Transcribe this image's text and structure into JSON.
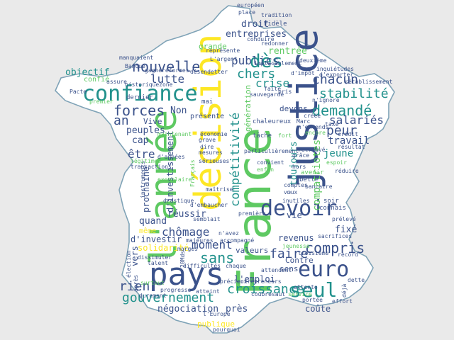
{
  "colors": {
    "page_background": "#eaeaea",
    "map_fill": "#ffffff",
    "map_outline": "#7fa3b7",
    "palette": [
      "#440154",
      "#3b528b",
      "#21918c",
      "#5ec962",
      "#fde725"
    ]
  },
  "words": [
    {
      "text": "France",
      "color": "#5ec962"
    },
    {
      "text": "justice",
      "color": "#3b528b"
    },
    {
      "text": "décision",
      "color": "#fde725"
    },
    {
      "text": "l'année",
      "color": "#5ec962"
    },
    {
      "text": "pays",
      "color": "#3b528b"
    },
    {
      "text": "confiance",
      "color": "#21918c"
    },
    {
      "text": "devoir",
      "color": "#3b528b"
    },
    {
      "text": "euro",
      "color": "#3b528b"
    },
    {
      "text": "seul",
      "color": "#21918c"
    },
    {
      "text": "gouvernement",
      "color": "#21918c"
    },
    {
      "text": "compris",
      "color": "#3b528b"
    },
    {
      "text": "croissance",
      "color": "#21918c"
    },
    {
      "text": "dès",
      "color": "#21918c"
    },
    {
      "text": "demandé",
      "color": "#21918c"
    },
    {
      "text": "nouvelle",
      "color": "#3b528b"
    },
    {
      "text": "forces",
      "color": "#3b528b"
    },
    {
      "text": "publics",
      "color": "#3b528b"
    },
    {
      "text": "chers",
      "color": "#21918c"
    },
    {
      "text": "crise",
      "color": "#21918c"
    },
    {
      "text": "stabilité",
      "color": "#21918c"
    },
    {
      "text": "chacun",
      "color": "#3b528b"
    },
    {
      "text": "peur",
      "color": "#3b528b"
    },
    {
      "text": "salariés",
      "color": "#3b528b"
    },
    {
      "text": "travail",
      "color": "#3b528b"
    },
    {
      "text": "jeune",
      "color": "#21918c"
    },
    {
      "text": "compétitivité",
      "color": "#21918c"
    },
    {
      "text": "compatriotes",
      "color": "#5ec962"
    },
    {
      "text": "toujours",
      "color": "#21918c"
    },
    {
      "text": "chômage",
      "color": "#3b528b"
    },
    {
      "text": "moment",
      "color": "#3b528b"
    },
    {
      "text": "sans",
      "color": "#21918c"
    },
    {
      "text": "faire",
      "color": "#3b528b"
    },
    {
      "text": "rien",
      "color": "#3b528b"
    },
    {
      "text": "entreprises",
      "color": "#3b528b"
    },
    {
      "text": "droit",
      "color": "#3b528b"
    },
    {
      "text": "rentrée",
      "color": "#5ec962"
    },
    {
      "text": "lutte",
      "color": "#3b528b"
    },
    {
      "text": "objectif",
      "color": "#21918c"
    },
    {
      "text": "an",
      "color": "#3b528b"
    },
    {
      "text": "Non",
      "color": "#3b528b"
    },
    {
      "text": "peuples",
      "color": "#3b528b"
    },
    {
      "text": "cap",
      "color": "#3b528b"
    },
    {
      "text": "être",
      "color": "#3b528b"
    },
    {
      "text": "d'investissement",
      "color": "#3b528b"
    },
    {
      "text": "réussir",
      "color": "#3b528b"
    },
    {
      "text": "quand",
      "color": "#3b528b"
    },
    {
      "text": "prochaine",
      "color": "#3b528b"
    },
    {
      "text": "solidarité",
      "color": "#fde725"
    },
    {
      "text": "d'investir",
      "color": "#3b528b"
    },
    {
      "text": "négociation",
      "color": "#3b528b"
    },
    {
      "text": "près",
      "color": "#3b528b"
    },
    {
      "text": "coûte",
      "color": "#3b528b"
    },
    {
      "text": "fixé",
      "color": "#3b528b"
    },
    {
      "text": "revenus",
      "color": "#3b528b"
    },
    {
      "text": "vie",
      "color": "#3b528b"
    },
    {
      "text": "l'emploi",
      "color": "#3b528b"
    },
    {
      "text": "valeurs",
      "color": "#3b528b"
    },
    {
      "text": "grande",
      "color": "#5ec962"
    },
    {
      "text": "génération",
      "color": "#5ec962"
    },
    {
      "text": "devons",
      "color": "#3b528b"
    },
    {
      "text": "publique",
      "color": "#fde725"
    },
    {
      "text": "vers",
      "color": "#3b528b"
    },
    {
      "text": "Vive",
      "color": "#3b528b"
    },
    {
      "text": "présente",
      "color": "#3b528b"
    },
    {
      "text": "même",
      "color": "#fde725"
    },
    {
      "text": "Contre",
      "color": "#3b528b"
    },
    {
      "text": "sens",
      "color": "#3b528b"
    },
    {
      "text": "européen",
      "color": "#3b528b"
    },
    {
      "text": "place",
      "color": "#3b528b"
    },
    {
      "text": "tradition",
      "color": "#3b528b"
    },
    {
      "text": "Fidèle",
      "color": "#3b528b"
    },
    {
      "text": "dernier",
      "color": "#3b528b"
    },
    {
      "text": "chaleureux",
      "color": "#3b528b"
    },
    {
      "text": "tâche",
      "color": "#3b528b"
    },
    {
      "text": "semblait",
      "color": "#3b528b"
    },
    {
      "text": "record",
      "color": "#3b528b"
    },
    {
      "text": "talent",
      "color": "#3b528b"
    },
    {
      "text": "progresse",
      "color": "#3b528b"
    },
    {
      "text": "Pacte",
      "color": "#3b528b"
    },
    {
      "text": "confié",
      "color": "#5ec962"
    },
    {
      "text": "manquaient",
      "color": "#3b528b"
    },
    {
      "text": "crédit",
      "color": "#3b528b"
    },
    {
      "text": "l'Europe",
      "color": "#3b528b"
    },
    {
      "text": "pourquoi",
      "color": "#3b528b"
    },
    {
      "text": "précieux",
      "color": "#3b528b"
    },
    {
      "text": "effort",
      "color": "#3b528b"
    },
    {
      "text": "portée",
      "color": "#3b528b"
    },
    {
      "text": "attendent",
      "color": "#3b528b"
    },
    {
      "text": "difficultés",
      "color": "#3b528b"
    },
    {
      "text": "dissimuler",
      "color": "#3b528b"
    },
    {
      "text": "grave",
      "color": "#3b528b"
    },
    {
      "text": "dire",
      "color": "#3b528b"
    },
    {
      "text": "mai",
      "color": "#3b528b"
    },
    {
      "text": "mesures",
      "color": "#3b528b"
    },
    {
      "text": "sérieuses",
      "color": "#3b528b"
    },
    {
      "text": "transactions",
      "color": "#3b528b"
    },
    {
      "text": "d'années",
      "color": "#3b528b"
    },
    {
      "text": "instruments",
      "color": "#3b528b"
    },
    {
      "text": "drastique",
      "color": "#3b528b"
    },
    {
      "text": "particulièrement",
      "color": "#3b528b"
    },
    {
      "text": "avenir",
      "color": "#5ec962"
    },
    {
      "text": "soir",
      "color": "#3b528b"
    },
    {
      "text": "connais",
      "color": "#3b528b"
    },
    {
      "text": "belle",
      "color": "#3b528b"
    },
    {
      "text": "taxe",
      "color": "#3b528b"
    },
    {
      "text": "réduire",
      "color": "#3b528b"
    },
    {
      "text": "inquiétudes",
      "color": "#3b528b"
    },
    {
      "text": "d'exporter",
      "color": "#3b528b"
    },
    {
      "text": "d'impôt",
      "color": "#3b528b"
    },
    {
      "text": "rétablissement",
      "color": "#3b528b"
    },
    {
      "text": "n'ignore",
      "color": "#3b528b"
    },
    {
      "text": "retrouvé",
      "color": "#3b528b"
    },
    {
      "text": "résultat",
      "color": "#3b528b"
    },
    {
      "text": "conduire",
      "color": "#3b528b"
    },
    {
      "text": "redonner",
      "color": "#3b528b"
    },
    {
      "text": "réformes",
      "color": "#3b528b"
    },
    {
      "text": "sauvegarde",
      "color": "#3b528b"
    },
    {
      "text": "première",
      "color": "#3b528b"
    },
    {
      "text": "maîtrise",
      "color": "#3b528b"
    },
    {
      "text": "marges",
      "color": "#3b528b"
    },
    {
      "text": "accompagné",
      "color": "#3b528b"
    },
    {
      "text": "entrepreneurs",
      "color": "#3b528b"
    },
    {
      "text": "chaque",
      "color": "#3b528b"
    },
    {
      "text": "troisième",
      "color": "#3b528b"
    },
    {
      "text": "sacrifices",
      "color": "#3b528b"
    },
    {
      "text": "comptes",
      "color": "#3b528b"
    },
    {
      "text": "hors",
      "color": "#3b528b"
    },
    {
      "text": "grâce",
      "color": "#3b528b"
    },
    {
      "text": "créée",
      "color": "#3b528b"
    },
    {
      "text": "prélevé",
      "color": "#3b528b"
    },
    {
      "text": "attente",
      "color": "#3b528b"
    },
    {
      "text": "coubresaut",
      "color": "#3b528b"
    },
    {
      "text": "vœux",
      "color": "#3b528b"
    },
    {
      "text": "n'avez",
      "color": "#3b528b"
    },
    {
      "text": "d'embaucher",
      "color": "#3b528b"
    },
    {
      "text": "exemplaire",
      "color": "#5ec962"
    },
    {
      "text": "légitimes",
      "color": "#5ec962"
    },
    {
      "text": "historiquezone",
      "color": "#3b528b"
    },
    {
      "text": "économie",
      "color": "#3b528b"
    },
    {
      "text": "assure",
      "color": "#3b528b"
    },
    {
      "text": "Banque",
      "color": "#3b528b"
    },
    {
      "text": "gagné",
      "color": "#3b528b"
    },
    {
      "text": "désendetter",
      "color": "#3b528b"
    },
    {
      "text": "implacablement",
      "color": "#3b528b"
    },
    {
      "text": "représente",
      "color": "#3b528b"
    },
    {
      "text": "L'argent",
      "color": "#3b528b"
    },
    {
      "text": "n'entends",
      "color": "#3b528b"
    },
    {
      "text": "bancaire",
      "color": "#3b528b"
    },
    {
      "text": "espoir",
      "color": "#5ec962"
    },
    {
      "text": "jeunesse",
      "color": "#5ec962"
    },
    {
      "text": "inutiles",
      "color": "#3b528b"
    },
    {
      "text": "convient",
      "color": "#3b528b"
    },
    {
      "text": "enfin",
      "color": "#5ec962"
    },
    {
      "text": "fort",
      "color": "#5ec962"
    },
    {
      "text": "élection",
      "color": "#3b528b"
    },
    {
      "text": "après",
      "color": "#3b528b"
    },
    {
      "text": "surtout",
      "color": "#5ec962"
    },
    {
      "text": "durement",
      "color": "#3b528b"
    },
    {
      "text": "20Mds",
      "color": "#3b528b"
    },
    {
      "text": "majeures",
      "color": "#3b528b"
    },
    {
      "text": "dette",
      "color": "#3b528b"
    },
    {
      "text": "déjà",
      "color": "#3b528b"
    },
    {
      "text": "service",
      "color": "#5ec962"
    },
    {
      "text": "maintenant",
      "color": "#5ec962"
    },
    {
      "text": "pris",
      "color": "#3b528b"
    },
    {
      "text": "faite",
      "color": "#3b528b"
    },
    {
      "text": "deuxième",
      "color": "#3b528b"
    },
    {
      "text": "Marc",
      "color": "#3b528b"
    },
    {
      "text": "encore",
      "color": "#5ec962"
    },
    {
      "text": "atteint",
      "color": "#3b528b"
    },
    {
      "text": "Français",
      "color": "#5ec962"
    },
    {
      "text": "premier",
      "color": "#5ec962"
    }
  ]
}
